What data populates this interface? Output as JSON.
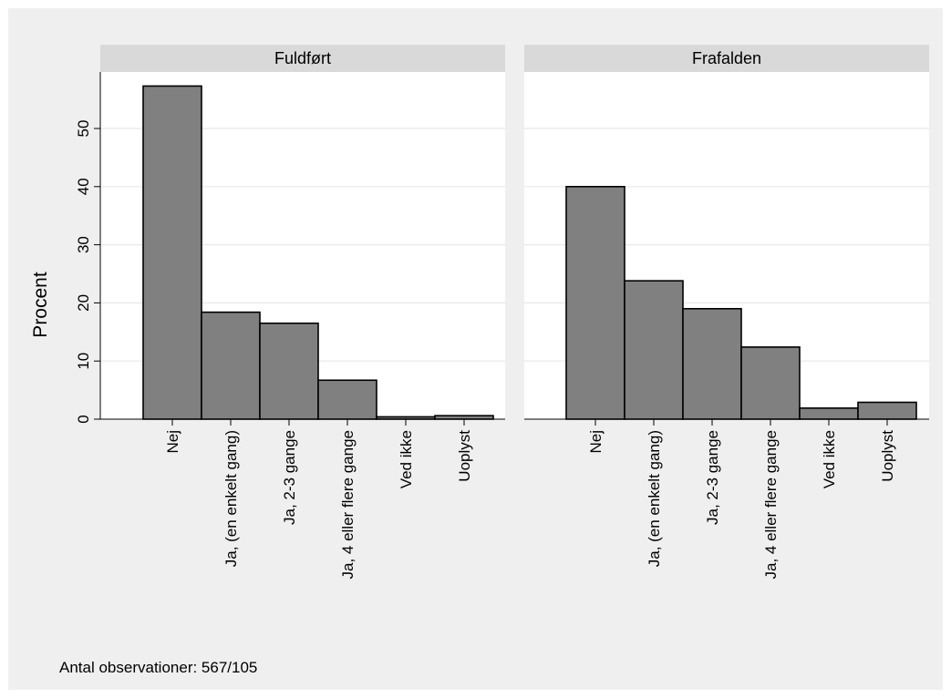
{
  "chart_data": {
    "type": "bar",
    "ylabel": "Procent",
    "ylim": [
      0,
      58
    ],
    "yticks": [
      0,
      10,
      20,
      30,
      40,
      50
    ],
    "grid": true,
    "categories": [
      "Nej",
      "Ja, (en enkelt gang)",
      "Ja, 2-3 gange",
      "Ja, 4 eller flere gange",
      "Ved ikke",
      "Uoplyst"
    ],
    "panels": [
      {
        "title": "Fuldført",
        "values": [
          57.3,
          18.4,
          16.5,
          6.7,
          0.4,
          0.6
        ]
      },
      {
        "title": "Frafalden",
        "values": [
          40.0,
          23.8,
          19.0,
          12.4,
          1.9,
          2.9
        ]
      }
    ],
    "colors": {
      "bar": "#808080",
      "strip": "#d9d9d9",
      "background": "#efefef"
    },
    "note": "Antal observationer: 567/105"
  }
}
